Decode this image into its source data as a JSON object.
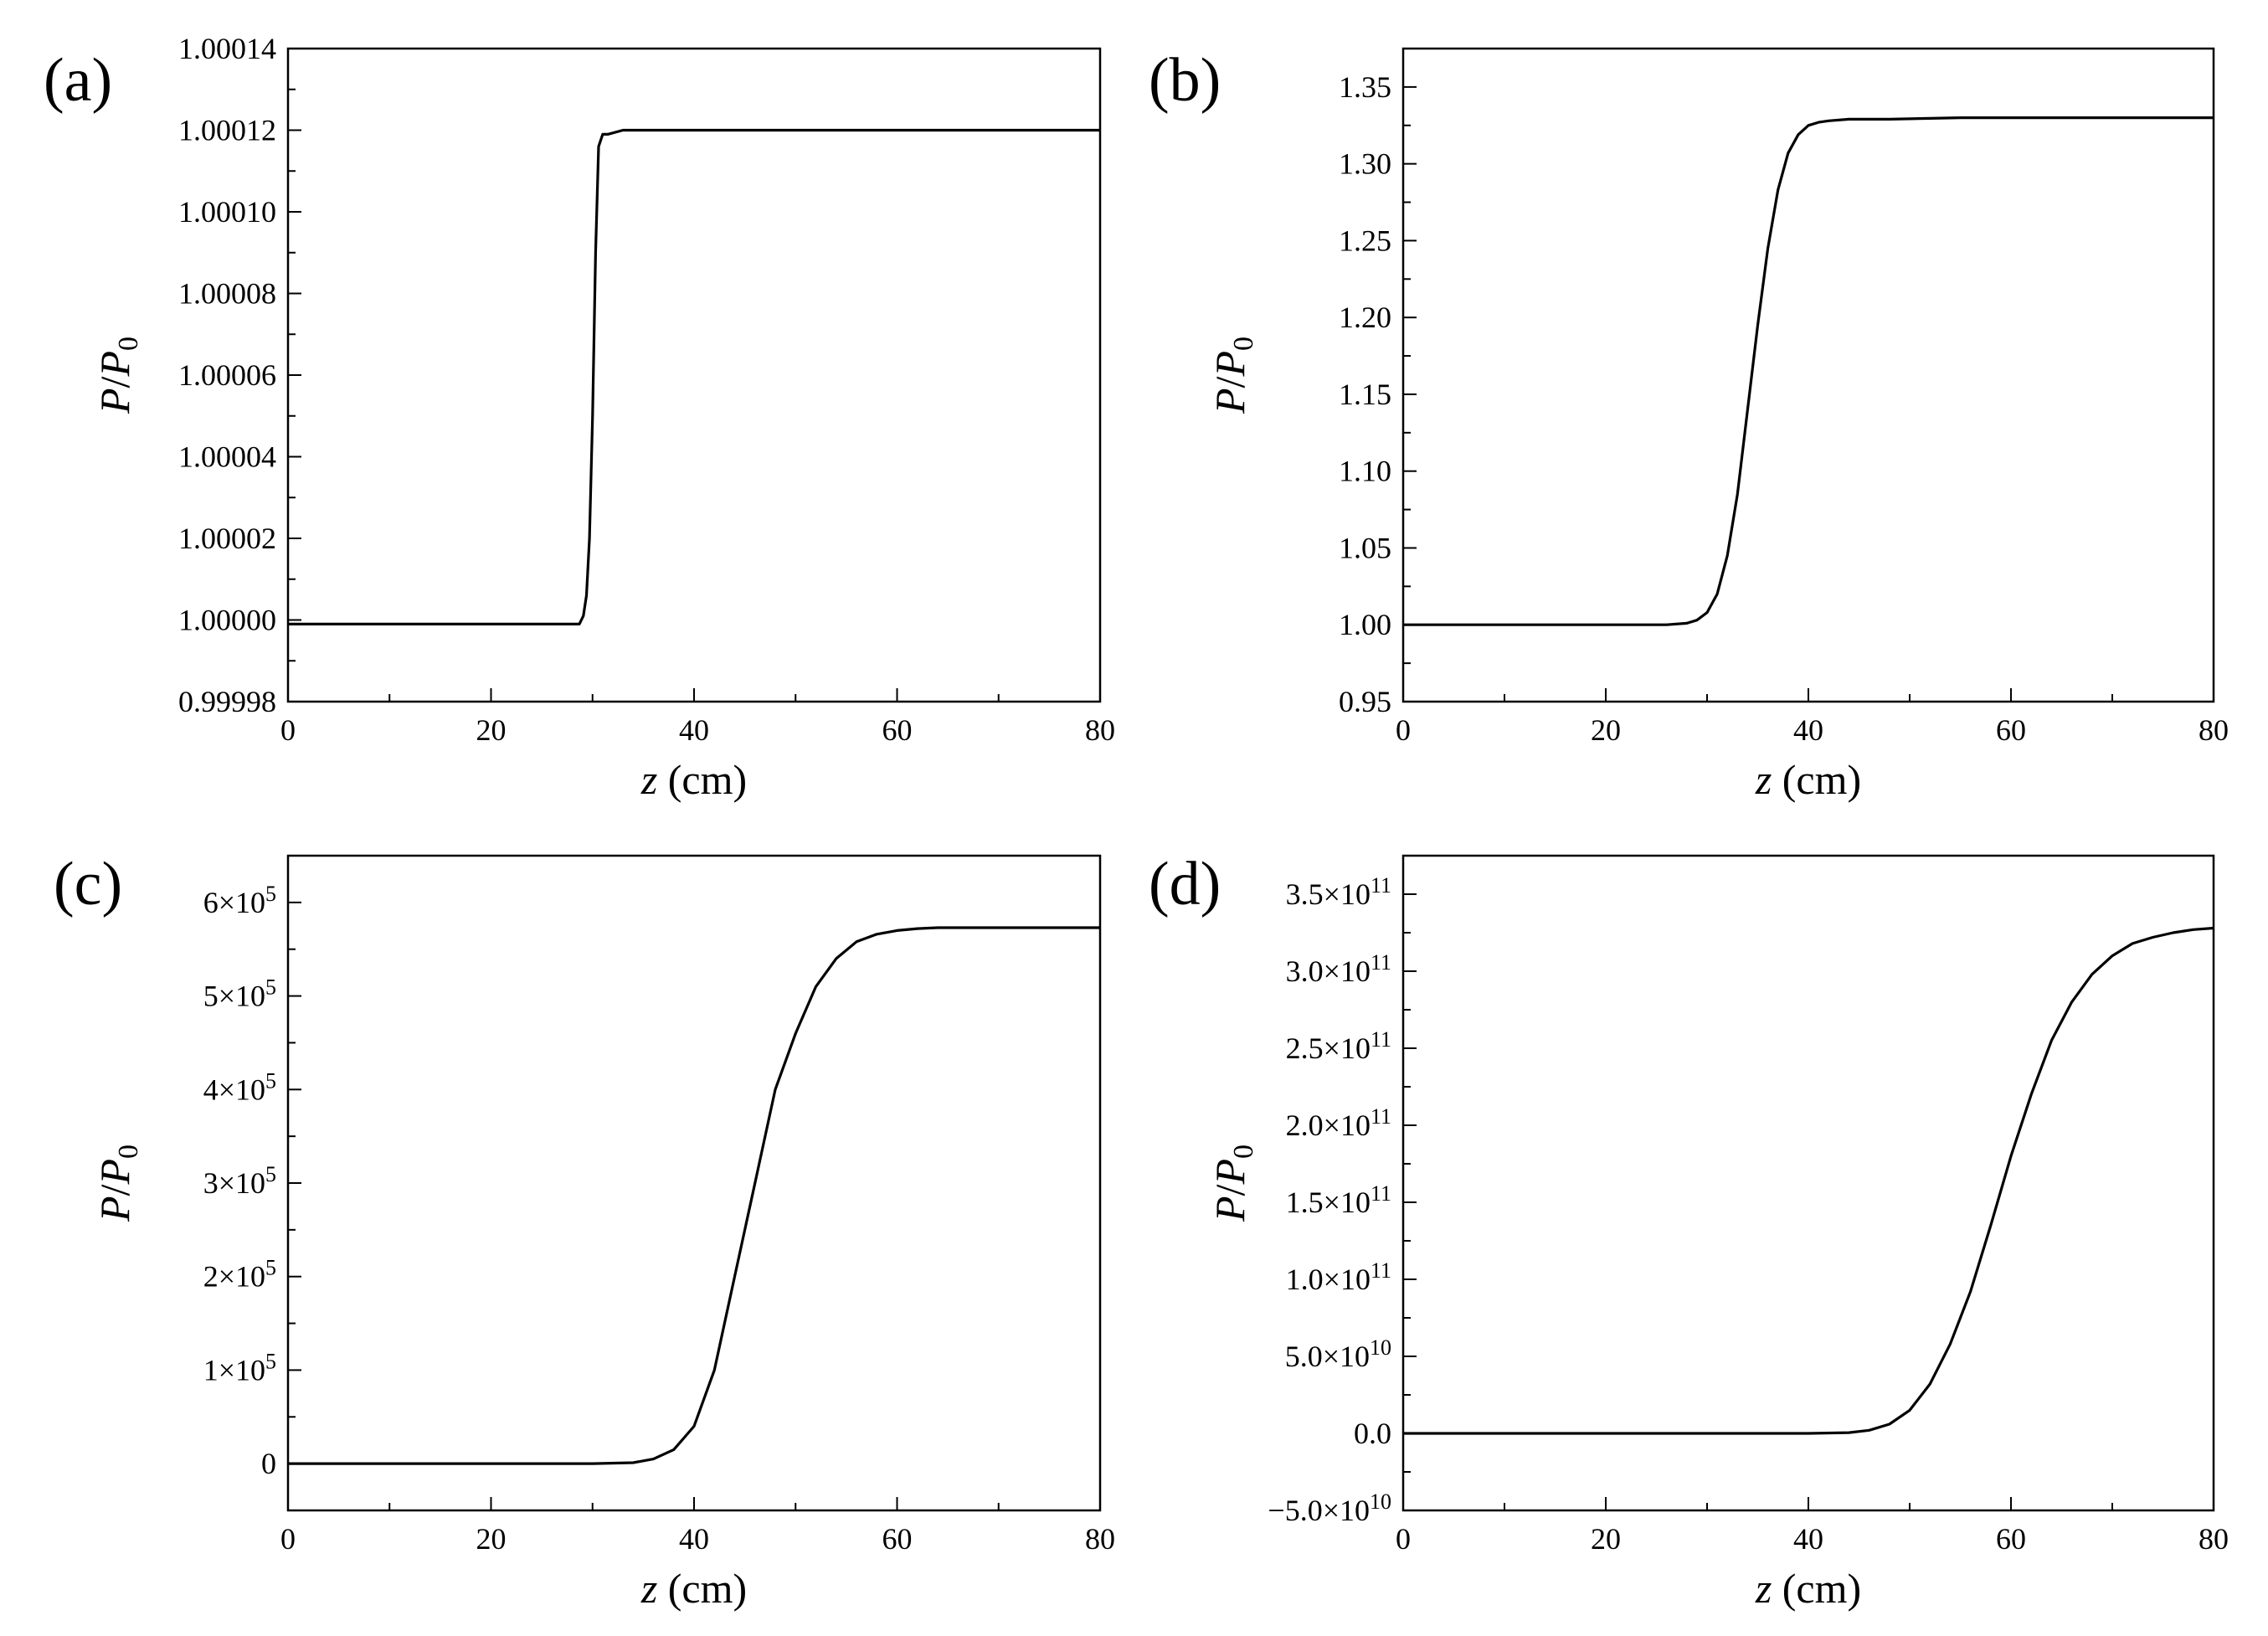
{
  "chart_data": [
    {
      "panel_label": "(a)",
      "type": "line",
      "xlabel": "z (cm)",
      "ylabel": "P/P0",
      "xlim": [
        0,
        80
      ],
      "ylim": [
        0.99998,
        1.00014
      ],
      "xticks": [
        0,
        20,
        40,
        60,
        80
      ],
      "yticks": [
        0.99998,
        1.0,
        1.00002,
        1.00004,
        1.00006,
        1.00008,
        1.0001,
        1.00012,
        1.00014
      ],
      "ytick_labels": [
        "0.99998",
        "1.00000",
        "1.00002",
        "1.00004",
        "1.00006",
        "1.00008",
        "1.00010",
        "1.00012",
        "1.00014"
      ],
      "grid": false,
      "series": [
        {
          "x": [
            0,
            10,
            20,
            28.0,
            28.7,
            29.1,
            29.4,
            29.7,
            30.0,
            30.3,
            30.6,
            31.0,
            31.5,
            33,
            36,
            40,
            50,
            60,
            70,
            80
          ],
          "y": [
            0.999999,
            0.999999,
            0.999999,
            0.999999,
            0.999999,
            1.000001,
            1.000006,
            1.00002,
            1.00005,
            1.00009,
            1.000116,
            1.000119,
            1.000119,
            1.00012,
            1.00012,
            1.00012,
            1.00012,
            1.00012,
            1.00012,
            1.00012
          ]
        }
      ]
    },
    {
      "panel_label": "(b)",
      "type": "line",
      "xlabel": "z (cm)",
      "ylabel": "P/P0",
      "xlim": [
        0,
        80
      ],
      "ylim": [
        0.95,
        1.375
      ],
      "xticks": [
        0,
        20,
        40,
        60,
        80
      ],
      "yticks": [
        0.95,
        1.0,
        1.05,
        1.1,
        1.15,
        1.2,
        1.25,
        1.3,
        1.35
      ],
      "ytick_labels": [
        "0.95",
        "1.00",
        "1.05",
        "1.10",
        "1.15",
        "1.20",
        "1.25",
        "1.30",
        "1.35"
      ],
      "grid": false,
      "series": [
        {
          "x": [
            0,
            10,
            20,
            26,
            28,
            29,
            30,
            31,
            32,
            33,
            34,
            35,
            36,
            37,
            38,
            39,
            40,
            41,
            42,
            44,
            48,
            55,
            60,
            70,
            80
          ],
          "y": [
            1.0,
            1.0,
            1.0,
            1.0,
            1.001,
            1.003,
            1.008,
            1.02,
            1.045,
            1.085,
            1.14,
            1.195,
            1.245,
            1.283,
            1.307,
            1.319,
            1.325,
            1.327,
            1.328,
            1.329,
            1.329,
            1.33,
            1.33,
            1.33,
            1.33
          ]
        }
      ]
    },
    {
      "panel_label": "(c)",
      "type": "line",
      "xlabel": "z (cm)",
      "ylabel": "P/P0",
      "xlim": [
        0,
        80
      ],
      "ylim": [
        -50000,
        650000
      ],
      "xticks": [
        0,
        20,
        40,
        60,
        80
      ],
      "yticks": [
        0,
        100000,
        200000,
        300000,
        400000,
        500000,
        600000
      ],
      "ytick_labels": [
        "0",
        "1×10^5",
        "2×10^5",
        "3×10^5",
        "4×10^5",
        "5×10^5",
        "6×10^5"
      ],
      "grid": false,
      "series": [
        {
          "x": [
            0,
            10,
            20,
            30,
            34,
            36,
            38,
            40,
            42,
            44,
            46,
            48,
            50,
            52,
            54,
            56,
            58,
            60,
            62,
            64,
            68,
            72,
            76,
            80
          ],
          "y": [
            0,
            0,
            0,
            0,
            1000,
            5000,
            15000,
            40000,
            100000,
            200000,
            300000,
            400000,
            460000,
            510000,
            540000,
            558000,
            566000,
            570000,
            572000,
            573000,
            573000,
            573000,
            573000,
            573000
          ]
        }
      ]
    },
    {
      "panel_label": "(d)",
      "type": "line",
      "xlabel": "z (cm)",
      "ylabel": "P/P0",
      "xlim": [
        0,
        80
      ],
      "ylim": [
        -50000000000,
        375000000000
      ],
      "xticks": [
        0,
        20,
        40,
        60,
        80
      ],
      "yticks": [
        -50000000000,
        0,
        50000000000,
        100000000000,
        150000000000,
        200000000000,
        250000000000,
        300000000000,
        350000000000
      ],
      "ytick_labels": [
        "−5.0×10^10",
        "0.0",
        "5.0×10^10",
        "1.0×10^11",
        "1.5×10^11",
        "2.0×10^11",
        "2.5×10^11",
        "3.0×10^11",
        "3.5×10^11"
      ],
      "grid": false,
      "series": [
        {
          "x": [
            0,
            10,
            20,
            30,
            40,
            44,
            46,
            48,
            50,
            52,
            54,
            56,
            58,
            60,
            62,
            64,
            66,
            68,
            70,
            72,
            74,
            76,
            78,
            80
          ],
          "y": [
            0,
            0,
            0,
            0,
            0,
            500000000,
            2000000000,
            6000000000,
            15000000000,
            32000000000,
            58000000000,
            92000000000,
            135000000000,
            180000000000,
            220000000000,
            255000000000,
            280000000000,
            298000000000,
            310000000000,
            318000000000,
            322000000000,
            325000000000,
            327000000000,
            328000000000
          ]
        }
      ]
    }
  ]
}
